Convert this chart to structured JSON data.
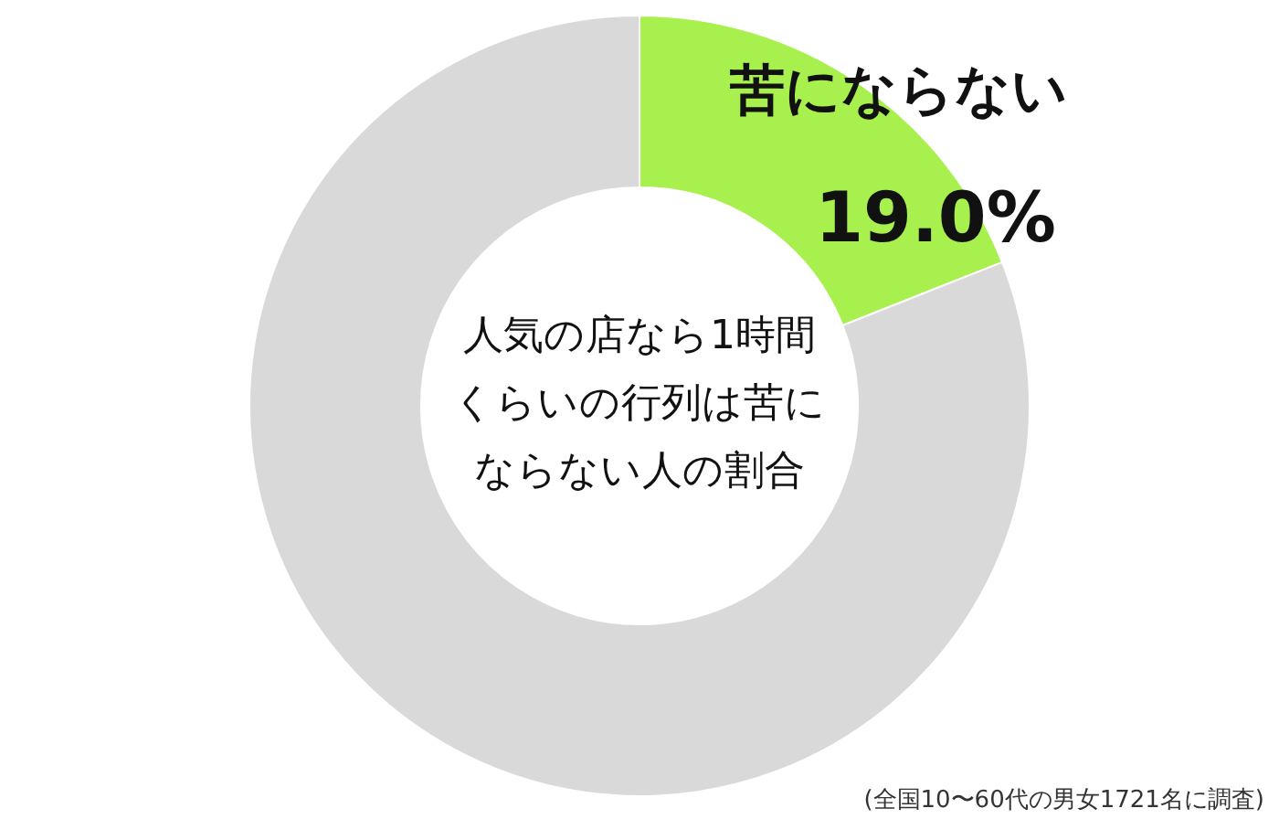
{
  "chart_data": {
    "type": "donut",
    "title": "人気の店なら1時間くらいの行列は苦にならない人の割合",
    "categories": [
      "苦にならない",
      null
    ],
    "values": [
      19.0,
      81.0
    ],
    "colors": [
      "#a8f04e",
      "#d9d9d9"
    ],
    "value_labels": [
      "19.0%",
      null
    ],
    "legend": false,
    "annotations": [
      "(全国10〜60代の男女1721名に調査)"
    ]
  }
}
